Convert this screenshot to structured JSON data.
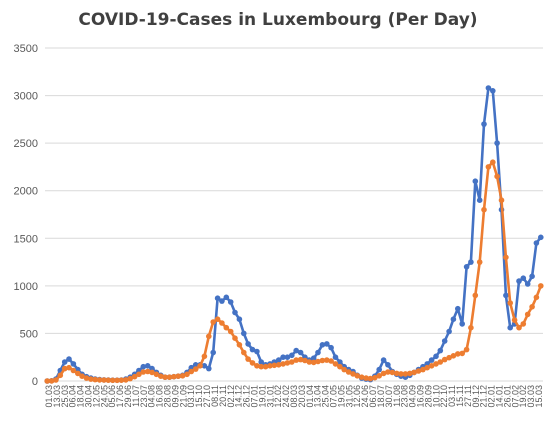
{
  "chart_data": {
    "type": "line",
    "title": "COVID-19-Cases in Luxembourg (Per Day)",
    "xlabel": "",
    "ylabel": "",
    "ylim": [
      0,
      3500
    ],
    "yticks": [
      0,
      500,
      1000,
      1500,
      2000,
      2500,
      3000,
      3500
    ],
    "grid": true,
    "legend": "none",
    "x_tick_labels": [
      "01.03",
      "13.03",
      "25.03",
      "06.04",
      "18.04",
      "30.04",
      "12.05",
      "24.05",
      "05.06",
      "17.06",
      "29.06",
      "11.07",
      "23.07",
      "04.08",
      "16.08",
      "28.08",
      "09.09",
      "21.09",
      "03.10",
      "15.10",
      "27.10",
      "08.11",
      "20.11",
      "02.12",
      "14.12",
      "26.12",
      "07.01",
      "19.01",
      "31.01",
      "12.02",
      "24.02",
      "08.03",
      "20.03",
      "01.04",
      "13.04",
      "25.04",
      "07.05",
      "19.05",
      "31.05",
      "12.06",
      "24.06",
      "06.07",
      "18.07",
      "30.07",
      "11.08",
      "23.08",
      "04.09",
      "16.09",
      "28.09",
      "10.10",
      "22.10",
      "03.11",
      "15.11",
      "27.11",
      "09.12",
      "21.12",
      "02.01",
      "14.01",
      "26.01",
      "07.02",
      "19.02",
      "03.03",
      "15.03"
    ],
    "series": [
      {
        "color": "#4472C4",
        "values": [
          0,
          2,
          20,
          110,
          200,
          230,
          180,
          120,
          70,
          45,
          30,
          20,
          15,
          12,
          10,
          8,
          8,
          10,
          20,
          40,
          70,
          110,
          150,
          160,
          130,
          90,
          60,
          40,
          40,
          45,
          50,
          60,
          90,
          140,
          170,
          170,
          160,
          130,
          300,
          870,
          840,
          880,
          830,
          720,
          650,
          500,
          390,
          330,
          310,
          200,
          170,
          180,
          200,
          220,
          250,
          250,
          270,
          320,
          300,
          250,
          220,
          240,
          300,
          380,
          390,
          350,
          250,
          200,
          150,
          120,
          100,
          60,
          30,
          20,
          15,
          50,
          120,
          220,
          170,
          100,
          70,
          50,
          40,
          60,
          90,
          120,
          150,
          180,
          220,
          260,
          320,
          420,
          520,
          650,
          760,
          600,
          1200,
          1250,
          2100,
          1900,
          2700,
          3080,
          3050,
          2500,
          1800,
          900,
          560,
          600,
          1050,
          1080,
          1020,
          1100,
          1450,
          1510
        ]
      },
      {
        "color": "#ED7D31",
        "values": [
          0,
          1,
          10,
          60,
          130,
          140,
          110,
          80,
          50,
          30,
          20,
          15,
          12,
          10,
          8,
          7,
          7,
          8,
          12,
          25,
          45,
          70,
          95,
          100,
          90,
          70,
          50,
          40,
          40,
          45,
          50,
          55,
          70,
          100,
          125,
          160,
          260,
          470,
          620,
          650,
          610,
          560,
          520,
          450,
          380,
          300,
          230,
          190,
          160,
          150,
          150,
          160,
          165,
          170,
          180,
          190,
          200,
          220,
          225,
          215,
          200,
          195,
          205,
          215,
          220,
          210,
          180,
          150,
          120,
          95,
          75,
          55,
          40,
          30,
          25,
          35,
          55,
          80,
          95,
          90,
          80,
          75,
          75,
          80,
          90,
          105,
          120,
          140,
          160,
          180,
          200,
          225,
          245,
          265,
          285,
          290,
          330,
          560,
          900,
          1250,
          1800,
          2250,
          2300,
          2150,
          1900,
          1300,
          820,
          640,
          560,
          600,
          700,
          780,
          880,
          1000
        ]
      }
    ]
  }
}
